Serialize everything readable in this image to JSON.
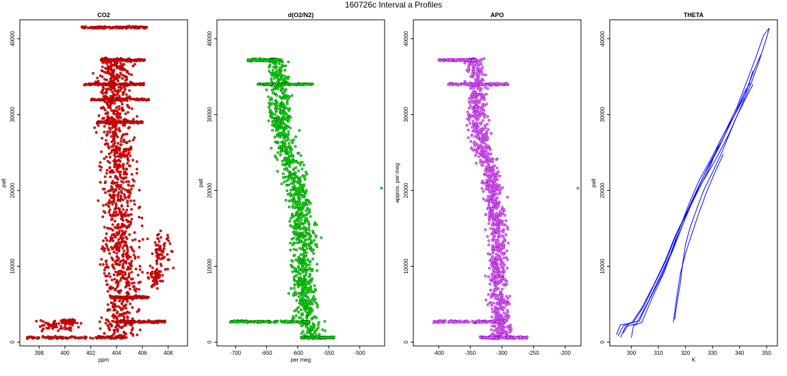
{
  "figure": {
    "title": "160726c   Interval a Profiles"
  },
  "chart_data": [
    {
      "type": "scatter",
      "title": "CO2",
      "xlabel": "ppm",
      "ylabel": "palt",
      "xlim": [
        396.5,
        409.5
      ],
      "ylim": [
        -500,
        42500
      ],
      "xticks": [
        398,
        400,
        402,
        404,
        406,
        408
      ],
      "yticks": [
        0,
        10000,
        20000,
        30000,
        40000
      ],
      "colors": {
        "fill": "#ff0000",
        "edge": "#8b0000"
      },
      "profile": [
        {
          "y": 600,
          "x": 404.0
        },
        {
          "y": 2000,
          "x": 404.2
        },
        {
          "y": 4000,
          "x": 404.3
        },
        {
          "y": 8000,
          "x": 404.4
        },
        {
          "y": 12000,
          "x": 404.2
        },
        {
          "y": 16000,
          "x": 404.3
        },
        {
          "y": 20000,
          "x": 404.1
        },
        {
          "y": 24000,
          "x": 404.2
        },
        {
          "y": 28000,
          "x": 404.0
        },
        {
          "y": 32000,
          "x": 404.0
        },
        {
          "y": 36000,
          "x": 403.9
        },
        {
          "y": 37500,
          "x": 403.8
        }
      ],
      "spread": 1.3,
      "legs": [
        {
          "y": 600,
          "x0": 397.0,
          "x1": 404.8
        },
        {
          "y": 2700,
          "x0": 404.0,
          "x1": 407.8
        },
        {
          "y": 5900,
          "x0": 403.5,
          "x1": 406.5
        },
        {
          "y": 29000,
          "x0": 402.5,
          "x1": 406.0
        },
        {
          "y": 32000,
          "x0": 402.0,
          "x1": 406.5
        },
        {
          "y": 34000,
          "x0": 401.5,
          "x1": 406.2
        },
        {
          "y": 37200,
          "x0": 402.8,
          "x1": 406.2
        },
        {
          "y": 41500,
          "x0": 401.3,
          "x1": 406.4
        }
      ],
      "clusters": [
        {
          "x": 399.5,
          "y": 2200,
          "rx": 1.5,
          "ry": 700
        },
        {
          "x": 400.3,
          "y": 2700,
          "rx": 0.6,
          "ry": 300
        },
        {
          "x": 407.5,
          "y": 12000,
          "rx": 0.7,
          "ry": 2200
        },
        {
          "x": 407.0,
          "y": 8500,
          "rx": 0.5,
          "ry": 1200
        }
      ]
    },
    {
      "type": "scatter",
      "title": "d(O2/N2)",
      "xlabel": "per meg",
      "ylabel": "palt",
      "xlim": [
        -730,
        -460
      ],
      "ylim": [
        -500,
        42500
      ],
      "xticks": [
        -700,
        -650,
        -600,
        -550,
        -500
      ],
      "yticks": [
        0,
        10000,
        20000,
        30000,
        40000
      ],
      "colors": {
        "fill": "#00ff00",
        "edge": "#006400"
      },
      "profile": [
        {
          "y": 600,
          "x": -575
        },
        {
          "y": 3000,
          "x": -585
        },
        {
          "y": 6000,
          "x": -588
        },
        {
          "y": 10000,
          "x": -592
        },
        {
          "y": 14000,
          "x": -590
        },
        {
          "y": 18000,
          "x": -595
        },
        {
          "y": 22000,
          "x": -605
        },
        {
          "y": 26000,
          "x": -622
        },
        {
          "y": 30000,
          "x": -630
        },
        {
          "y": 33000,
          "x": -628
        },
        {
          "y": 36000,
          "x": -632
        },
        {
          "y": 37400,
          "x": -638
        }
      ],
      "spread": 18,
      "legs": [
        {
          "y": 2700,
          "x0": -710,
          "x1": -580
        },
        {
          "y": 600,
          "x0": -595,
          "x1": -540
        },
        {
          "y": 34000,
          "x0": -665,
          "x1": -575
        },
        {
          "y": 37200,
          "x0": -680,
          "x1": -630
        }
      ],
      "clusters": [],
      "outliers": [
        {
          "x": -465,
          "y": 20300
        }
      ]
    },
    {
      "type": "scatter",
      "title": "APO",
      "xlabel": "",
      "ylabel": "approx. per meg",
      "xlim": [
        -440,
        -175
      ],
      "ylim": [
        -500,
        42500
      ],
      "xticks": [
        -400,
        -350,
        -300,
        -250,
        -200
      ],
      "yticks": [
        0,
        10000,
        20000,
        30000,
        40000
      ],
      "colors": {
        "fill": "#ee82ee",
        "edge": "#9400d3"
      },
      "profile": [
        {
          "y": 600,
          "x": -298
        },
        {
          "y": 3000,
          "x": -303
        },
        {
          "y": 6000,
          "x": -305
        },
        {
          "y": 10000,
          "x": -307
        },
        {
          "y": 14000,
          "x": -306
        },
        {
          "y": 18000,
          "x": -310
        },
        {
          "y": 22000,
          "x": -318
        },
        {
          "y": 26000,
          "x": -332
        },
        {
          "y": 30000,
          "x": -340
        },
        {
          "y": 33000,
          "x": -338
        },
        {
          "y": 36000,
          "x": -342
        },
        {
          "y": 37400,
          "x": -345
        }
      ],
      "spread": 15,
      "legs": [
        {
          "y": 2700,
          "x0": -410,
          "x1": -298
        },
        {
          "y": 600,
          "x0": -335,
          "x1": -260
        },
        {
          "y": 34000,
          "x0": -385,
          "x1": -290
        },
        {
          "y": 37200,
          "x0": -400,
          "x1": -340
        }
      ],
      "clusters": [],
      "outliers": [
        {
          "x": -180,
          "y": 20300
        }
      ]
    },
    {
      "type": "line",
      "title": "THETA",
      "xlabel": "K",
      "ylabel": "palt",
      "xlim": [
        292,
        354
      ],
      "ylim": [
        -500,
        42500
      ],
      "xticks": [
        300,
        310,
        320,
        330,
        340,
        350
      ],
      "yticks": [
        0,
        10000,
        20000,
        30000,
        40000
      ],
      "colors": {
        "line": "#0000ff"
      },
      "series": [
        {
          "x": [
            295,
            297,
            301,
            305,
            309,
            313,
            317,
            322,
            326,
            331,
            336,
            340,
            344,
            347,
            350,
            351
          ],
          "y": [
            800,
            2200,
            2600,
            4800,
            7800,
            11000,
            14500,
            18000,
            21000,
            24000,
            27500,
            30500,
            34000,
            37000,
            40000,
            41400
          ]
        },
        {
          "x": [
            296,
            298,
            302,
            306,
            310,
            314,
            318,
            321,
            325,
            330,
            335,
            339,
            343,
            346,
            349,
            351
          ],
          "y": [
            600,
            2100,
            2400,
            5200,
            8300,
            11500,
            15000,
            18300,
            21300,
            24500,
            28000,
            31000,
            34500,
            37500,
            40500,
            41400
          ]
        },
        {
          "x": [
            297,
            299,
            303,
            307,
            311,
            315,
            319,
            323,
            327,
            332,
            337,
            341,
            345,
            348
          ],
          "y": [
            1200,
            2500,
            2800,
            5600,
            8800,
            12000,
            15500,
            19000,
            22000,
            25500,
            29000,
            32000,
            35500,
            38000
          ]
        },
        {
          "x": [
            300,
            300.5,
            304,
            308,
            312,
            316,
            320,
            324,
            329,
            333,
            338,
            342,
            345
          ],
          "y": [
            600,
            2200,
            2600,
            6000,
            9200,
            12800,
            16200,
            19500,
            23000,
            26500,
            30000,
            33000,
            35800
          ]
        },
        {
          "x": [
            294.5,
            296,
            300,
            304,
            308,
            312,
            316,
            321,
            325,
            329,
            334,
            338,
            342,
            344
          ],
          "y": [
            1000,
            2300,
            2500,
            4500,
            7400,
            10600,
            14000,
            17500,
            20800,
            23500,
            27000,
            30000,
            33000,
            34200
          ]
        },
        {
          "x": [
            316,
            316.5,
            318,
            319,
            320,
            322,
            324,
            327,
            330,
            333,
            336,
            339,
            342,
            345
          ],
          "y": [
            3000,
            5000,
            7800,
            10500,
            13000,
            15200,
            17500,
            20000,
            22300,
            24800,
            27300,
            29800,
            32000,
            34000
          ]
        },
        {
          "x": [
            315.5,
            316,
            317,
            318.5,
            320,
            322,
            325,
            328,
            331,
            334
          ],
          "y": [
            2600,
            4200,
            6500,
            9200,
            11800,
            14000,
            17000,
            19800,
            22200,
            24800
          ]
        }
      ]
    }
  ]
}
